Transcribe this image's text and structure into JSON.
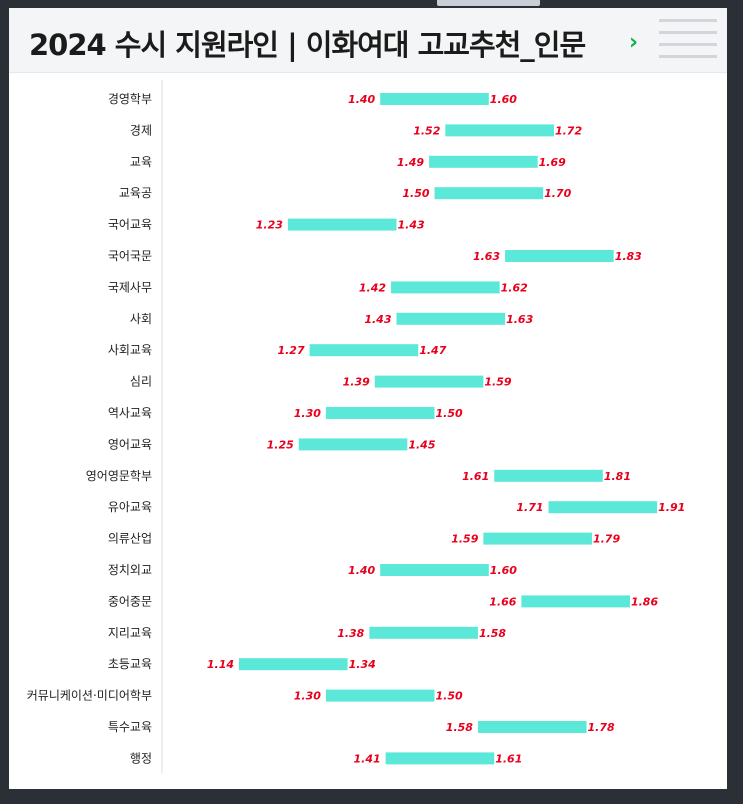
{
  "page": {
    "title": "2024 수시 지원라인 | 이화여대 고교추천_인문",
    "next_icon": "chevron-right-icon",
    "menu_icon": "hamburger-menu-icon"
  },
  "colors": {
    "bar": "#5ce8d9",
    "value_text": "#e8001c",
    "chevron": "#12b04a"
  },
  "chart_data": {
    "type": "bar",
    "orientation": "horizontal-floating-range",
    "title": "",
    "xlabel": "",
    "ylabel": "",
    "xlim": [
      1.0,
      2.0
    ],
    "grid": false,
    "categories": [
      "경영학부",
      "경제",
      "교육",
      "교육공",
      "국어교육",
      "국어국문",
      "국제사무",
      "사회",
      "사회교육",
      "심리",
      "역사교육",
      "영어교육",
      "영어영문학부",
      "유아교육",
      "의류산업",
      "정치외교",
      "중어중문",
      "지리교육",
      "초등교육",
      "커뮤니케이션·미디어학부",
      "특수교육",
      "행정"
    ],
    "low": [
      1.4,
      1.52,
      1.49,
      1.5,
      1.23,
      1.63,
      1.42,
      1.43,
      1.27,
      1.39,
      1.3,
      1.25,
      1.61,
      1.71,
      1.59,
      1.4,
      1.66,
      1.38,
      1.14,
      1.3,
      1.58,
      1.41
    ],
    "high": [
      1.6,
      1.72,
      1.69,
      1.7,
      1.43,
      1.83,
      1.62,
      1.63,
      1.47,
      1.59,
      1.5,
      1.45,
      1.81,
      1.91,
      1.79,
      1.6,
      1.86,
      1.58,
      1.34,
      1.5,
      1.78,
      1.61
    ],
    "low_labels": [
      "1.40",
      "1.52",
      "1.49",
      "1.50",
      "1.23",
      "1.63",
      "1.42",
      "1.43",
      "1.27",
      "1.39",
      "1.30",
      "1.25",
      "1.61",
      "1.71",
      "1.59",
      "1.40",
      "1.66",
      "1.38",
      "1.14",
      "1.30",
      "1.58",
      "1.41"
    ],
    "high_labels": [
      "1.60",
      "1.72",
      "1.69",
      "1.70",
      "1.43",
      "1.83",
      "1.62",
      "1.63",
      "1.47",
      "1.59",
      "1.50",
      "1.45",
      "1.81",
      "1.91",
      "1.79",
      "1.60",
      "1.86",
      "1.58",
      "1.34",
      "1.50",
      "1.78",
      "1.61"
    ]
  }
}
